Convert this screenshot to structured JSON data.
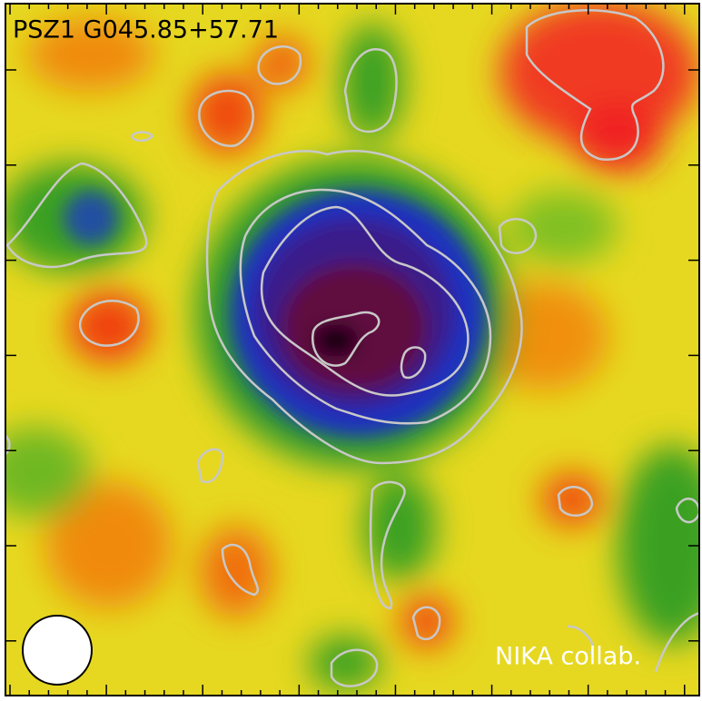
{
  "map": {
    "title": "PSZ1 G045.85+57.71",
    "credit": "NIKA collab."
  }
}
